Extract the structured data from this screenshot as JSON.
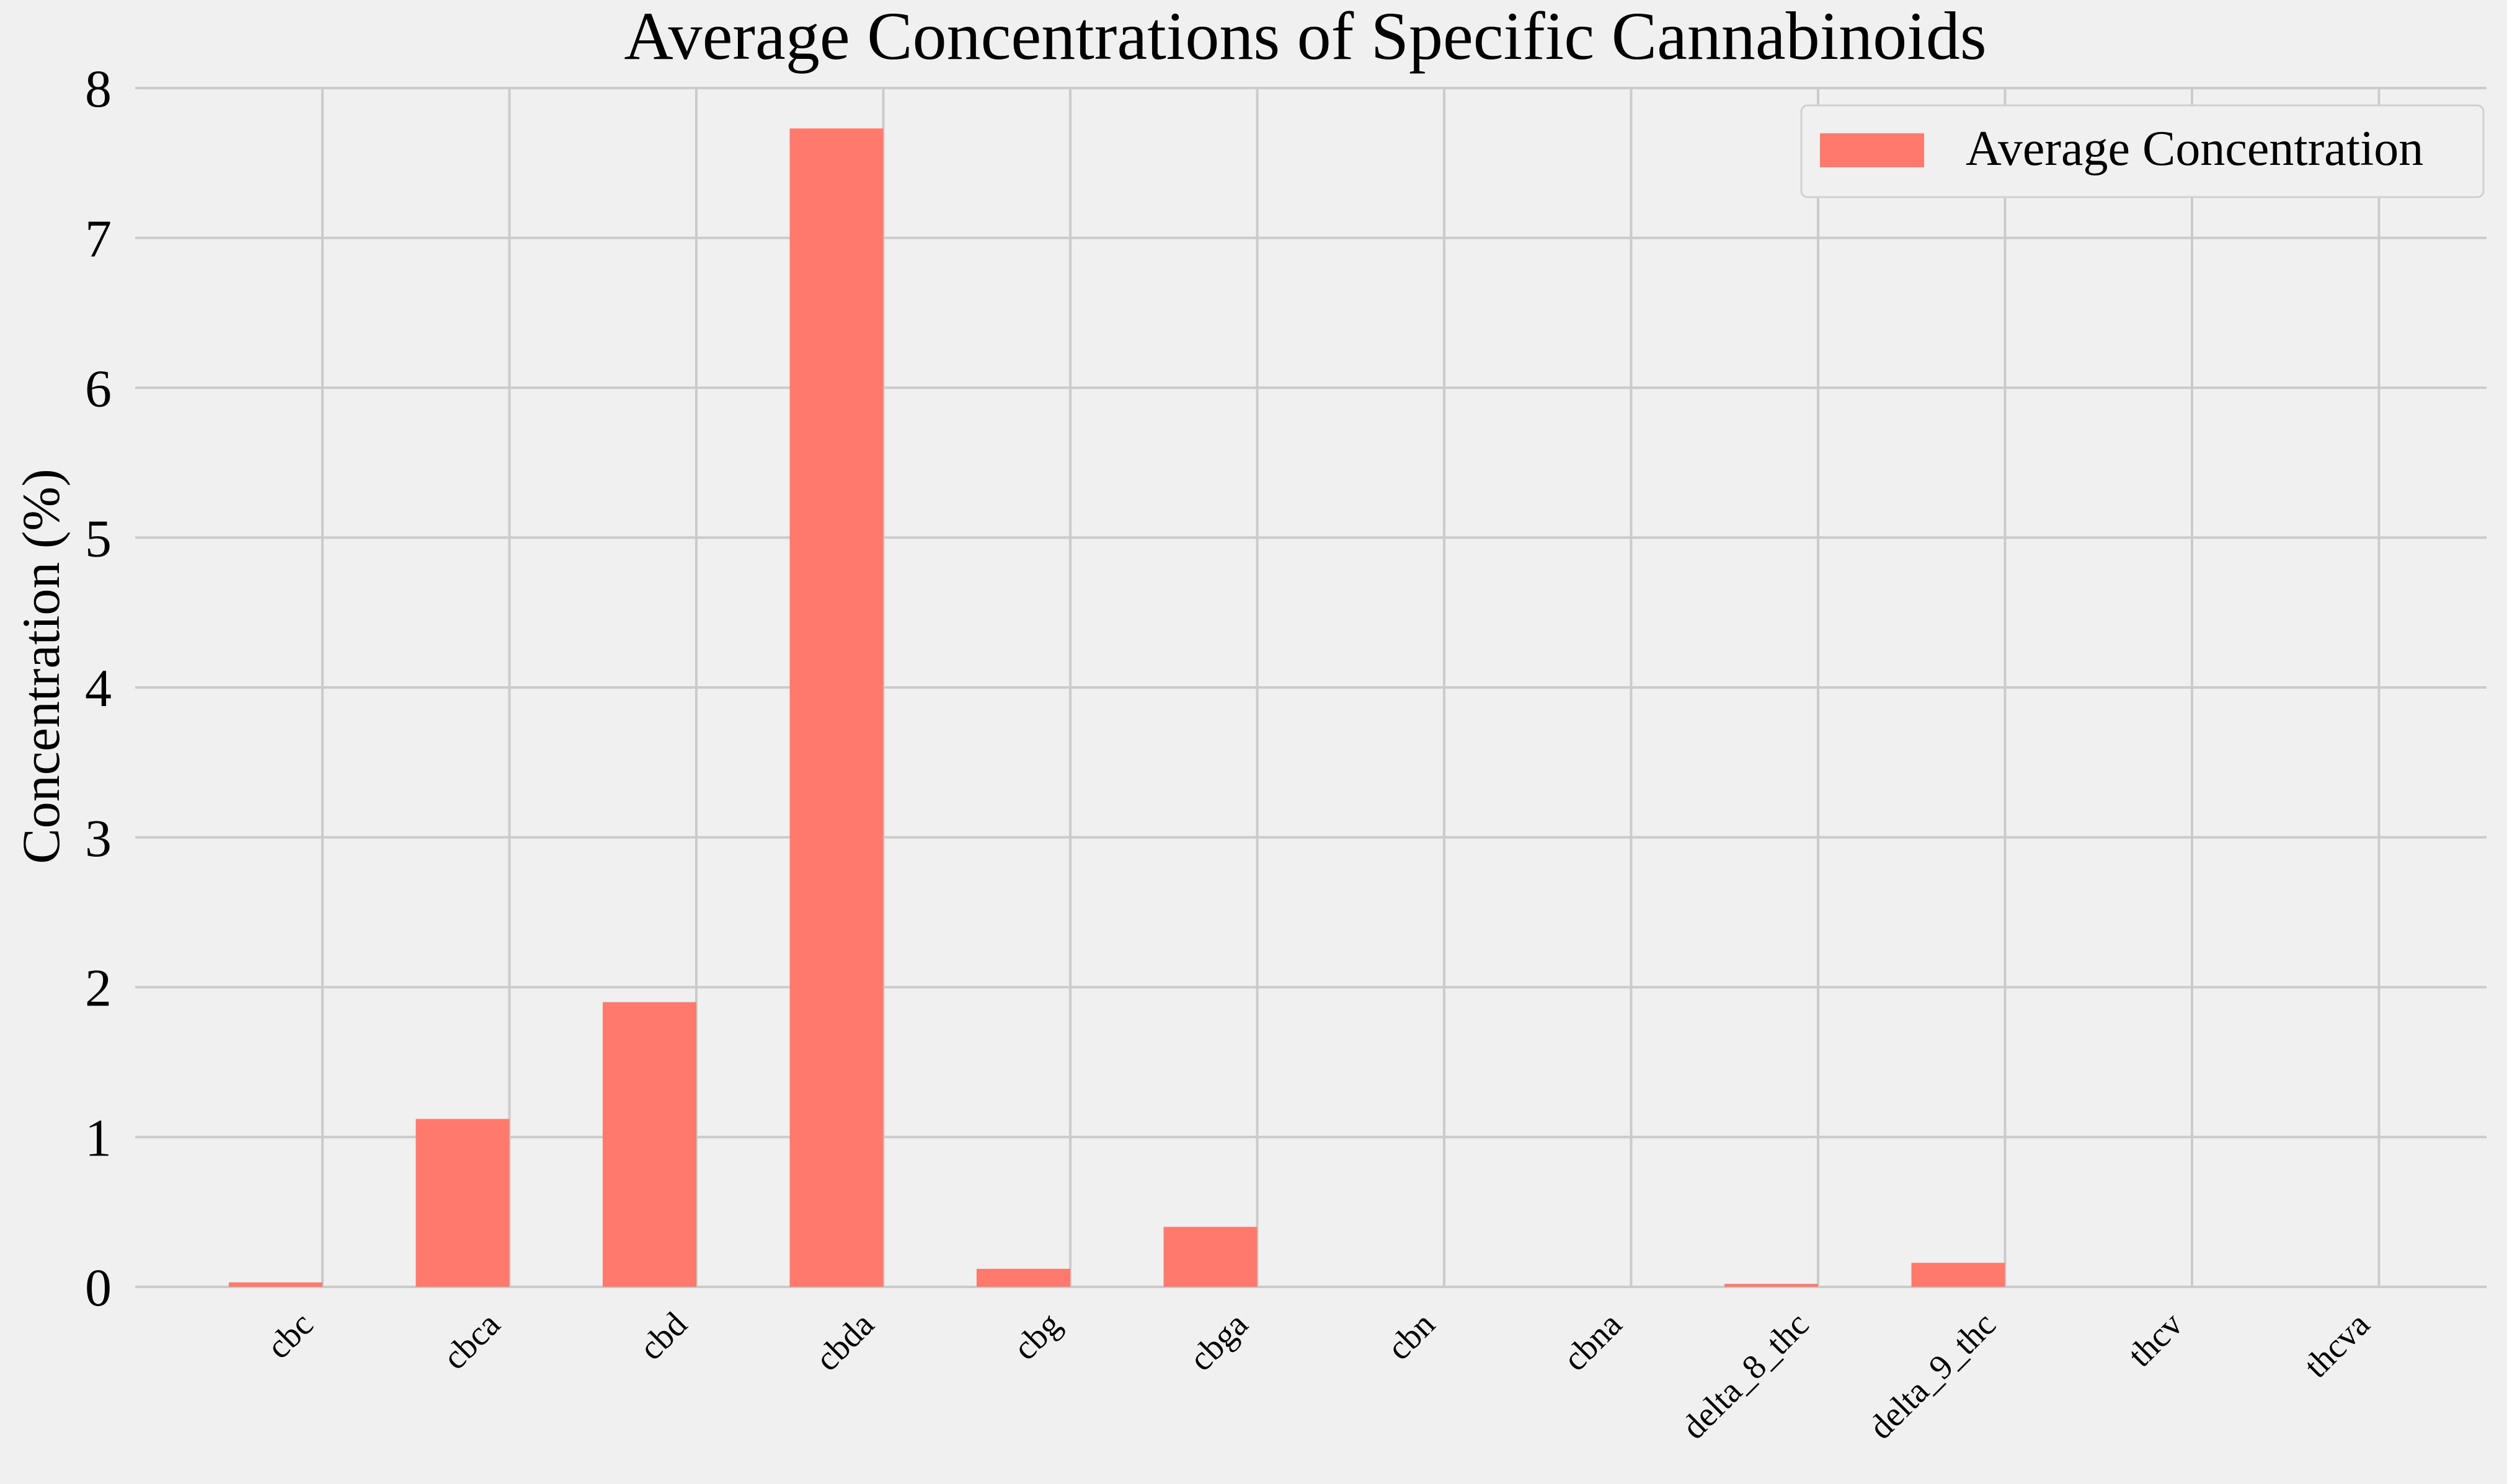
{
  "chart_data": {
    "type": "bar",
    "title": "Average Concentrations of Specific Cannabinoids",
    "xlabel": "",
    "ylabel": "Concentration (%)",
    "categories": [
      "cbc",
      "cbca",
      "cbd",
      "cbda",
      "cbg",
      "cbga",
      "cbn",
      "cbna",
      "delta_8_thc",
      "delta_9_thc",
      "thcv",
      "thcva"
    ],
    "series": [
      {
        "name": "Average Concentration",
        "values": [
          0.03,
          1.12,
          1.9,
          7.73,
          0.12,
          0.4,
          0.0,
          0.0,
          0.02,
          0.16,
          0.0,
          0.0
        ]
      }
    ],
    "ylim": [
      0,
      8
    ],
    "yticks": [
      "0",
      "1",
      "2",
      "3",
      "4",
      "5",
      "6",
      "7",
      "8"
    ],
    "grid": true,
    "legend_position": "top-right",
    "colors": {
      "bar": "#ff796c",
      "background": "#f0f0f0",
      "grid": "#cbcbcb"
    }
  }
}
